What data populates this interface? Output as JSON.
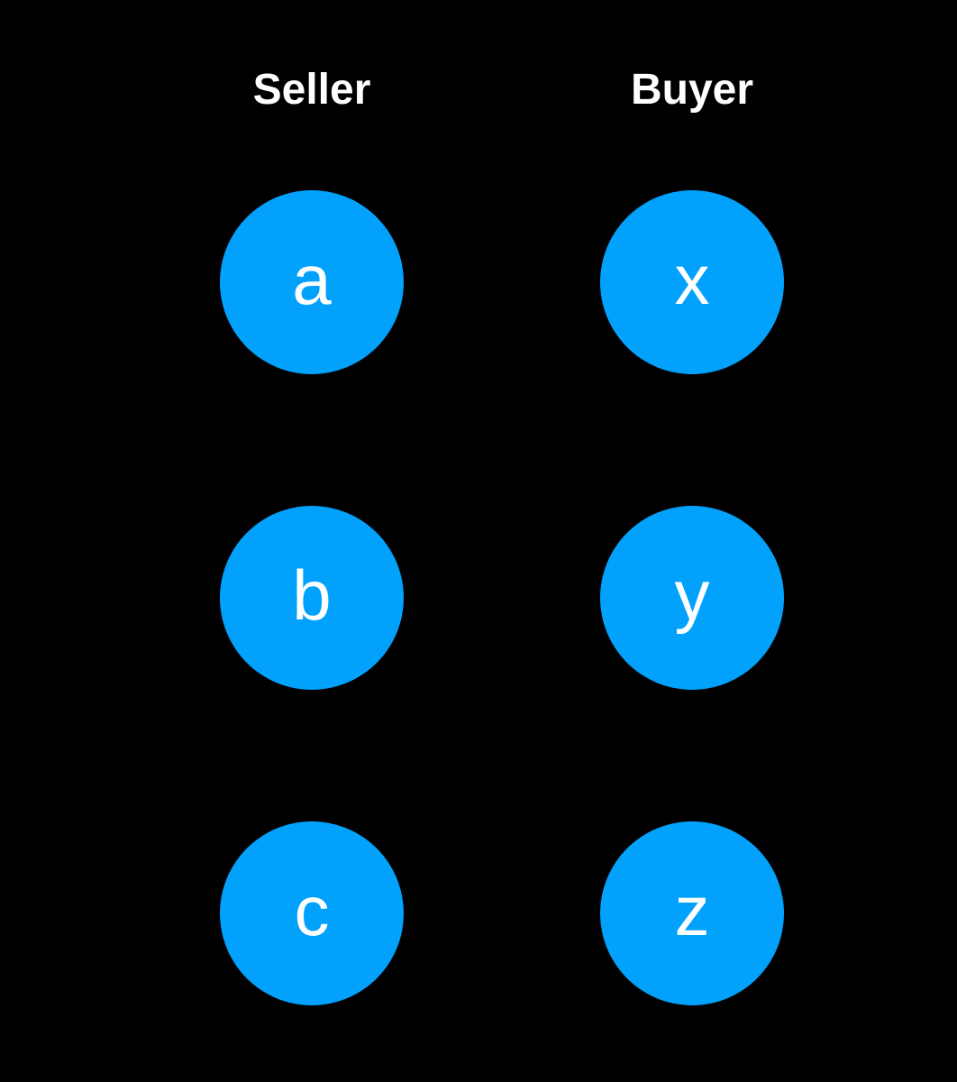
{
  "columns": {
    "left": {
      "header": "Seller",
      "nodes": [
        "a",
        "b",
        "c"
      ]
    },
    "right": {
      "header": "Buyer",
      "nodes": [
        "x",
        "y",
        "z"
      ]
    }
  },
  "colors": {
    "background": "#000000",
    "node_fill": "#02a2fc",
    "text": "#ffffff"
  }
}
